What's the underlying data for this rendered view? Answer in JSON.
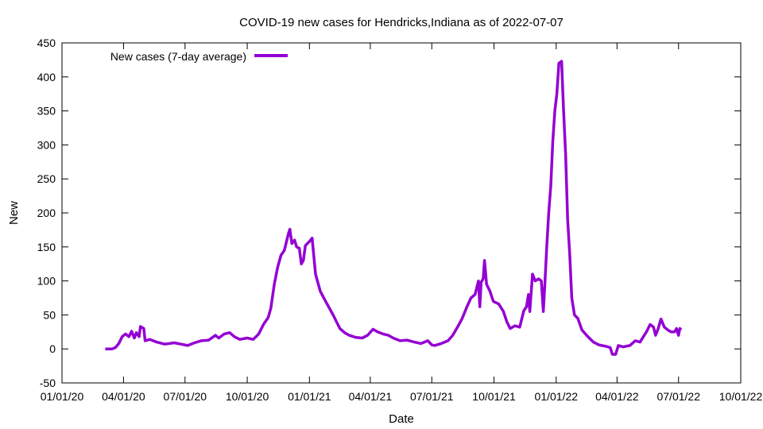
{
  "chart_data": {
    "type": "line",
    "title": "COVID-19 new cases for Hendricks,Indiana as of 2022-07-07",
    "xlabel": "Date",
    "ylabel": "New",
    "ylim": [
      -50,
      450
    ],
    "yticks": [
      -50,
      0,
      50,
      100,
      150,
      200,
      250,
      300,
      350,
      400,
      450
    ],
    "xlim": [
      "2020-01-01",
      "2022-10-01"
    ],
    "xticks": [
      "2020-01-01",
      "2020-04-01",
      "2020-07-01",
      "2020-10-01",
      "2021-01-01",
      "2021-04-01",
      "2021-07-01",
      "2021-10-01",
      "2022-01-01",
      "2022-04-01",
      "2022-07-01",
      "2022-10-01"
    ],
    "xtick_labels": [
      "01/01/20",
      "04/01/20",
      "07/01/20",
      "10/01/20",
      "01/01/21",
      "04/01/21",
      "07/01/21",
      "10/01/21",
      "01/01/22",
      "04/01/22",
      "07/01/22",
      "10/01/22"
    ],
    "grid": false,
    "legend_position": "top-left",
    "series": [
      {
        "name": "New cases (7-day average)",
        "color": "#9400d3",
        "points": [
          [
            "2020-03-05",
            0
          ],
          [
            "2020-03-15",
            0
          ],
          [
            "2020-03-20",
            2
          ],
          [
            "2020-03-25",
            8
          ],
          [
            "2020-03-30",
            18
          ],
          [
            "2020-04-04",
            22
          ],
          [
            "2020-04-09",
            18
          ],
          [
            "2020-04-13",
            26
          ],
          [
            "2020-04-17",
            16
          ],
          [
            "2020-04-20",
            24
          ],
          [
            "2020-04-24",
            18
          ],
          [
            "2020-04-26",
            33
          ],
          [
            "2020-05-01",
            30
          ],
          [
            "2020-05-03",
            12
          ],
          [
            "2020-05-10",
            14
          ],
          [
            "2020-05-20",
            10
          ],
          [
            "2020-06-01",
            7
          ],
          [
            "2020-06-15",
            9
          ],
          [
            "2020-06-25",
            7
          ],
          [
            "2020-07-05",
            5
          ],
          [
            "2020-07-15",
            9
          ],
          [
            "2020-07-25",
            12
          ],
          [
            "2020-08-05",
            13
          ],
          [
            "2020-08-15",
            20
          ],
          [
            "2020-08-20",
            16
          ],
          [
            "2020-08-28",
            22
          ],
          [
            "2020-09-05",
            24
          ],
          [
            "2020-09-12",
            18
          ],
          [
            "2020-09-20",
            14
          ],
          [
            "2020-10-01",
            16
          ],
          [
            "2020-10-10",
            14
          ],
          [
            "2020-10-18",
            22
          ],
          [
            "2020-10-25",
            36
          ],
          [
            "2020-11-01",
            46
          ],
          [
            "2020-11-05",
            60
          ],
          [
            "2020-11-10",
            95
          ],
          [
            "2020-11-15",
            120
          ],
          [
            "2020-11-20",
            138
          ],
          [
            "2020-11-25",
            145
          ],
          [
            "2020-12-01",
            170
          ],
          [
            "2020-12-03",
            176
          ],
          [
            "2020-12-06",
            155
          ],
          [
            "2020-12-10",
            160
          ],
          [
            "2020-12-13",
            150
          ],
          [
            "2020-12-17",
            148
          ],
          [
            "2020-12-20",
            125
          ],
          [
            "2020-12-23",
            130
          ],
          [
            "2020-12-26",
            152
          ],
          [
            "2021-01-01",
            158
          ],
          [
            "2021-01-05",
            163
          ],
          [
            "2021-01-10",
            110
          ],
          [
            "2021-01-17",
            85
          ],
          [
            "2021-01-25",
            70
          ],
          [
            "2021-02-05",
            50
          ],
          [
            "2021-02-15",
            30
          ],
          [
            "2021-02-22",
            24
          ],
          [
            "2021-03-01",
            20
          ],
          [
            "2021-03-10",
            17
          ],
          [
            "2021-03-20",
            16
          ],
          [
            "2021-03-28",
            20
          ],
          [
            "2021-04-05",
            29
          ],
          [
            "2021-04-12",
            25
          ],
          [
            "2021-04-20",
            22
          ],
          [
            "2021-04-28",
            20
          ],
          [
            "2021-05-05",
            16
          ],
          [
            "2021-05-15",
            12
          ],
          [
            "2021-05-25",
            13
          ],
          [
            "2021-06-05",
            10
          ],
          [
            "2021-06-15",
            8
          ],
          [
            "2021-06-25",
            12
          ],
          [
            "2021-07-01",
            6
          ],
          [
            "2021-07-05",
            5
          ],
          [
            "2021-07-15",
            8
          ],
          [
            "2021-07-25",
            12
          ],
          [
            "2021-08-01",
            20
          ],
          [
            "2021-08-08",
            32
          ],
          [
            "2021-08-15",
            45
          ],
          [
            "2021-08-22",
            62
          ],
          [
            "2021-08-28",
            75
          ],
          [
            "2021-09-03",
            80
          ],
          [
            "2021-09-08",
            100
          ],
          [
            "2021-09-10",
            62
          ],
          [
            "2021-09-12",
            98
          ],
          [
            "2021-09-15",
            103
          ],
          [
            "2021-09-17",
            130
          ],
          [
            "2021-09-20",
            95
          ],
          [
            "2021-09-25",
            85
          ],
          [
            "2021-09-30",
            70
          ],
          [
            "2021-10-08",
            66
          ],
          [
            "2021-10-15",
            55
          ],
          [
            "2021-10-20",
            40
          ],
          [
            "2021-10-25",
            30
          ],
          [
            "2021-11-01",
            34
          ],
          [
            "2021-11-08",
            32
          ],
          [
            "2021-11-14",
            56
          ],
          [
            "2021-11-18",
            62
          ],
          [
            "2021-11-21",
            80
          ],
          [
            "2021-11-23",
            55
          ],
          [
            "2021-11-27",
            110
          ],
          [
            "2021-12-01",
            100
          ],
          [
            "2021-12-06",
            103
          ],
          [
            "2021-12-10",
            100
          ],
          [
            "2021-12-13",
            55
          ],
          [
            "2021-12-15",
            90
          ],
          [
            "2021-12-18",
            150
          ],
          [
            "2021-12-21",
            200
          ],
          [
            "2021-12-24",
            240
          ],
          [
            "2021-12-27",
            305
          ],
          [
            "2021-12-30",
            350
          ],
          [
            "2022-01-02",
            375
          ],
          [
            "2022-01-05",
            420
          ],
          [
            "2022-01-09",
            423
          ],
          [
            "2022-01-12",
            350
          ],
          [
            "2022-01-15",
            285
          ],
          [
            "2022-01-18",
            190
          ],
          [
            "2022-01-21",
            140
          ],
          [
            "2022-01-24",
            75
          ],
          [
            "2022-01-28",
            50
          ],
          [
            "2022-02-02",
            45
          ],
          [
            "2022-02-08",
            28
          ],
          [
            "2022-02-15",
            20
          ],
          [
            "2022-02-25",
            10
          ],
          [
            "2022-03-05",
            6
          ],
          [
            "2022-03-15",
            4
          ],
          [
            "2022-03-22",
            2
          ],
          [
            "2022-03-25",
            -8
          ],
          [
            "2022-03-30",
            -8
          ],
          [
            "2022-04-03",
            5
          ],
          [
            "2022-04-10",
            3
          ],
          [
            "2022-04-20",
            5
          ],
          [
            "2022-04-28",
            12
          ],
          [
            "2022-05-05",
            10
          ],
          [
            "2022-05-10",
            18
          ],
          [
            "2022-05-15",
            26
          ],
          [
            "2022-05-20",
            36
          ],
          [
            "2022-05-25",
            32
          ],
          [
            "2022-05-28",
            20
          ],
          [
            "2022-06-01",
            30
          ],
          [
            "2022-06-05",
            44
          ],
          [
            "2022-06-10",
            32
          ],
          [
            "2022-06-15",
            28
          ],
          [
            "2022-06-20",
            25
          ],
          [
            "2022-06-25",
            25
          ],
          [
            "2022-06-28",
            30
          ],
          [
            "2022-07-01",
            20
          ],
          [
            "2022-07-03",
            30
          ],
          [
            "2022-07-05",
            28
          ]
        ]
      }
    ]
  }
}
